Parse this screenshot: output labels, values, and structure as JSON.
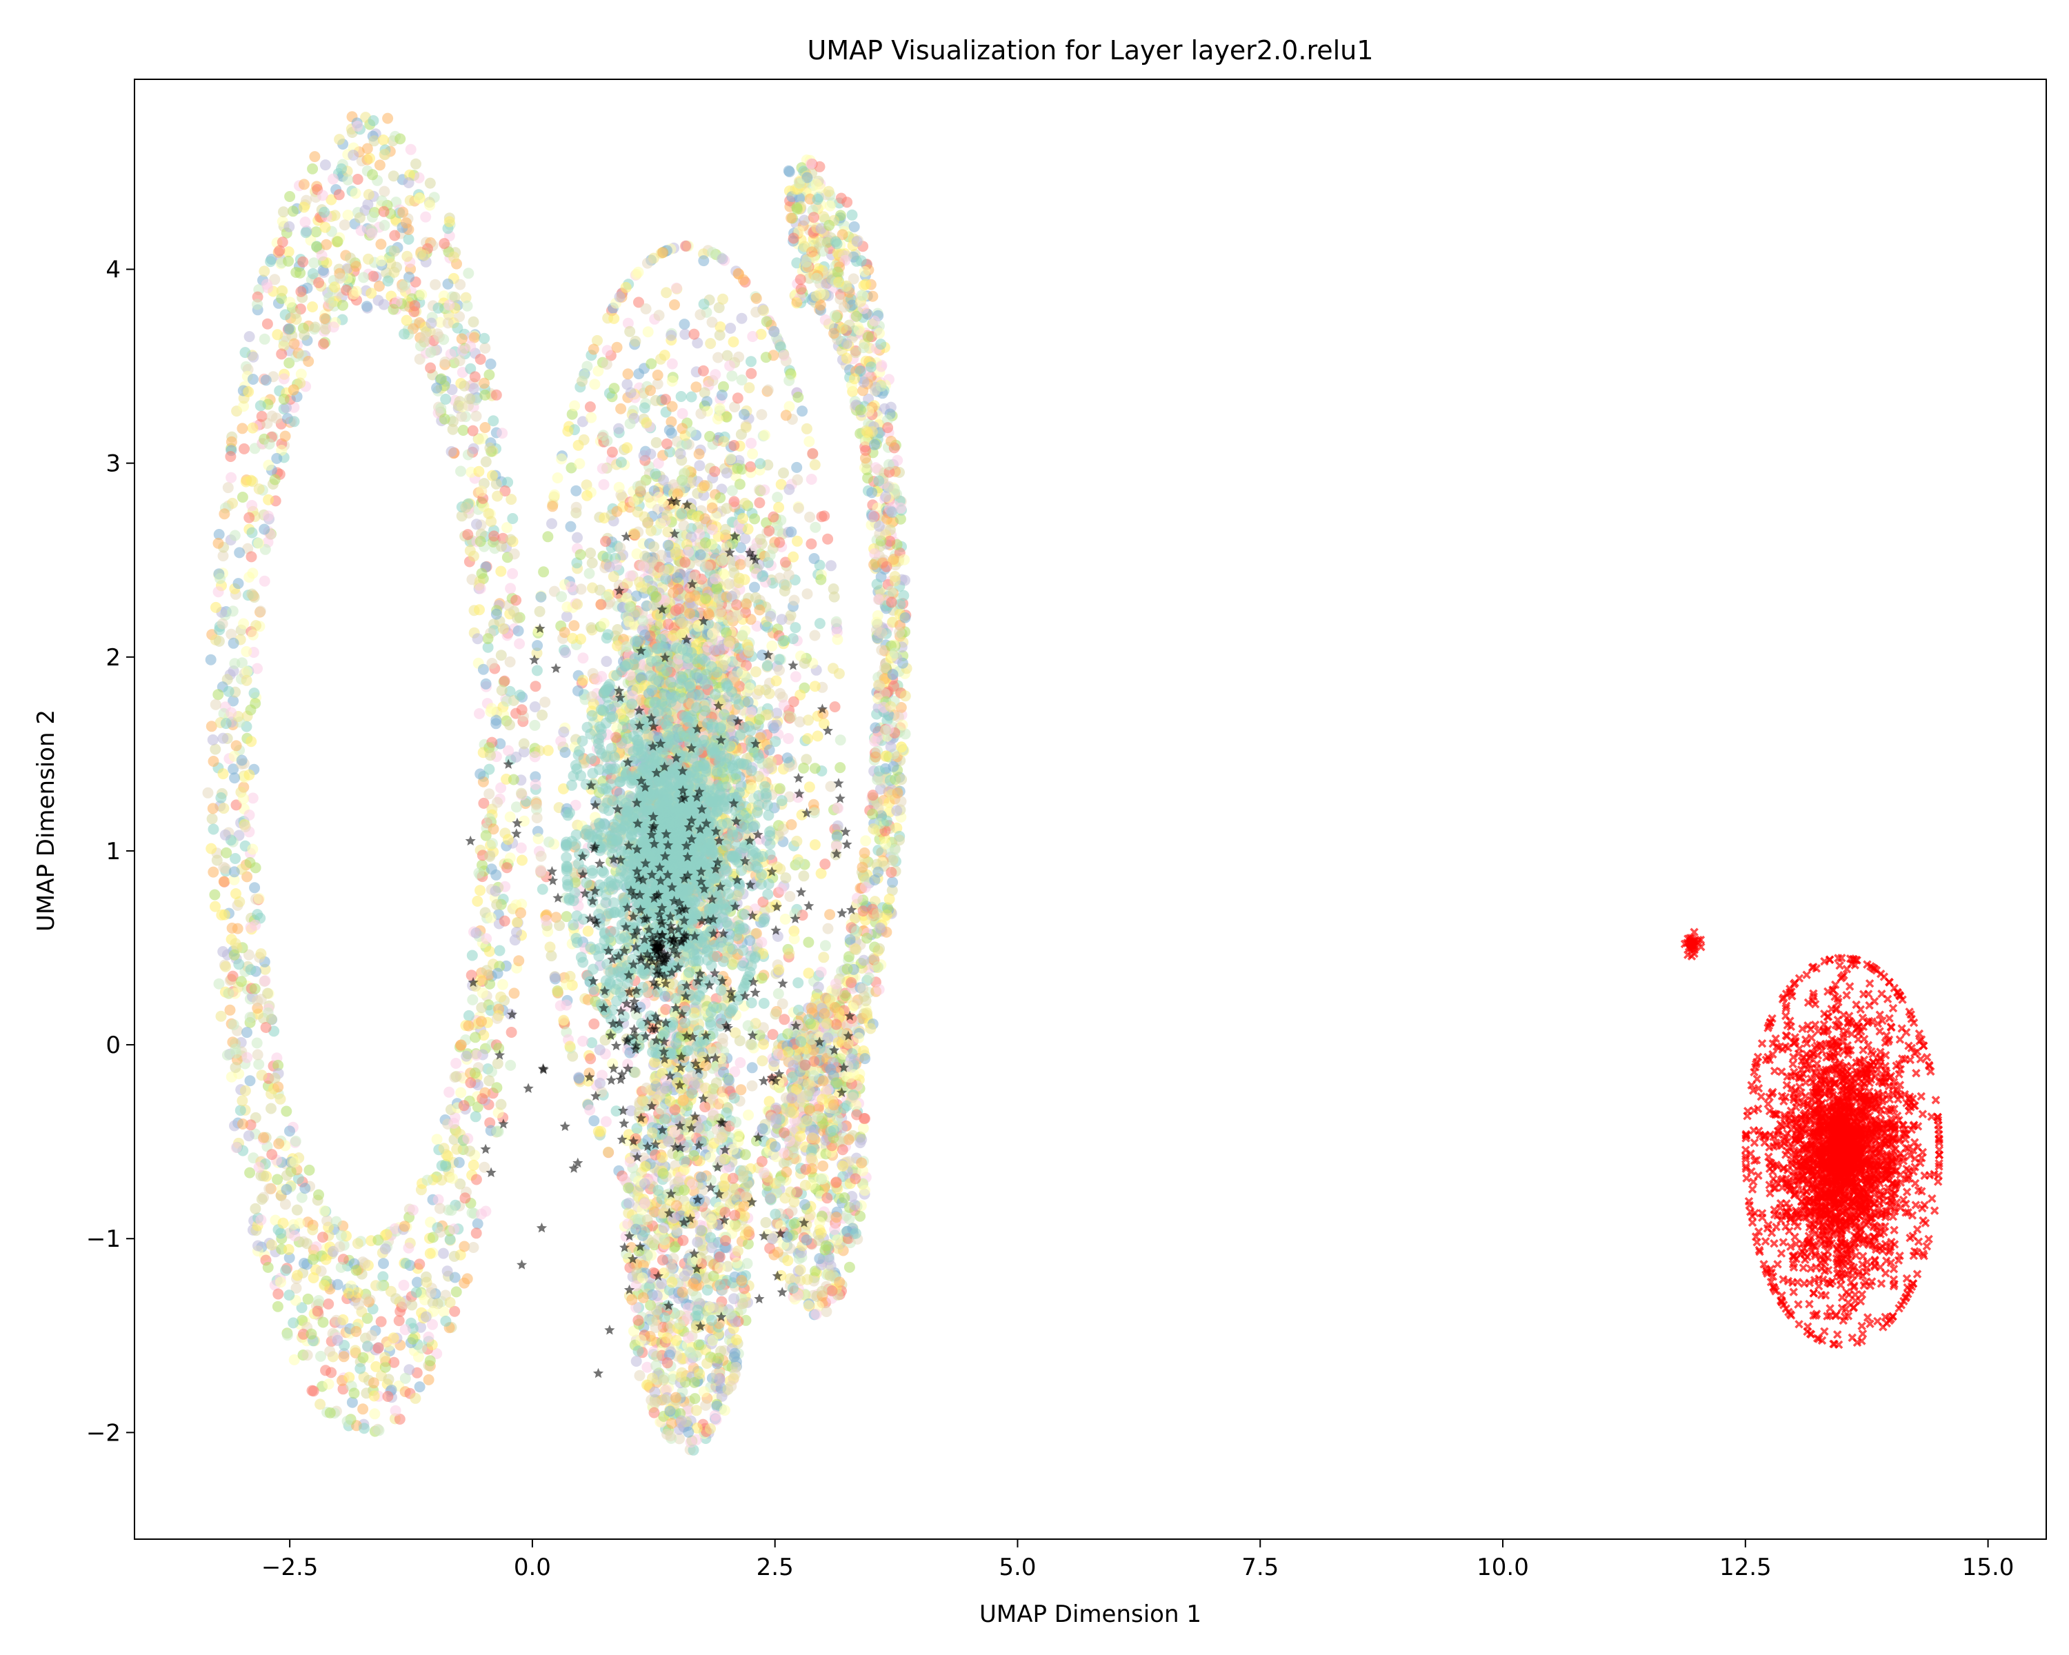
{
  "chart_data": {
    "type": "scatter",
    "title": "UMAP Visualization for Layer layer2.0.relu1",
    "xlabel": "UMAP Dimension 1",
    "ylabel": "UMAP Dimension 2",
    "xlim": [
      -4.1,
      15.6
    ],
    "ylim": [
      -2.55,
      4.98
    ],
    "xticks": [
      -2.5,
      0.0,
      2.5,
      5.0,
      7.5,
      10.0,
      12.5,
      15.0
    ],
    "xtick_labels": [
      "−2.5",
      "0.0",
      "2.5",
      "5.0",
      "7.5",
      "10.0",
      "12.5",
      "15.0"
    ],
    "yticks": [
      -2,
      -1,
      0,
      1,
      2,
      3,
      4
    ],
    "ytick_labels": [
      "−2",
      "−1",
      "0",
      "1",
      "2",
      "3",
      "4"
    ],
    "grid": false,
    "legend": false,
    "colors": {
      "palette": [
        "#8dd3c7",
        "#ffffb3",
        "#bebada",
        "#fb8072",
        "#80b1d3",
        "#fdb462",
        "#b3de69",
        "#fccde5",
        "#e5d8bd",
        "#ccebc5",
        "#ffed6f",
        "#d9d9a0",
        "#f0e68c"
      ],
      "cluster_core": "#8fd1c6",
      "star_marker": "#000000",
      "outlier_marker": "#ff0000"
    },
    "series": [
      {
        "marker": "circle",
        "color": "mixed-pastel",
        "regions": [
          {
            "shape": "ring",
            "cx": -1.7,
            "cy": 1.4,
            "rx": 1.4,
            "ry": 2.9,
            "thickness": 0.35,
            "density": 1700
          },
          {
            "shape": "blob",
            "cx": 1.6,
            "cy": 1.6,
            "rx": 1.5,
            "ry": 2.4,
            "density": 4200
          },
          {
            "shape": "arc",
            "cx": 2.8,
            "cy": 2.0,
            "rx": 0.9,
            "ry": 2.2,
            "thickness": 0.35,
            "density": 1100
          },
          {
            "shape": "lobe",
            "cx": 1.6,
            "cy": -1.0,
            "rx": 0.65,
            "ry": 1.1,
            "density": 900
          },
          {
            "shape": "lobe",
            "cx": 2.9,
            "cy": -0.6,
            "rx": 0.55,
            "ry": 0.8,
            "density": 500
          }
        ]
      },
      {
        "marker": "circle",
        "color": "#8fd1c6",
        "regions": [
          {
            "shape": "blob",
            "cx": 1.4,
            "cy": 1.0,
            "rx": 1.0,
            "ry": 1.0,
            "density": 1800
          }
        ]
      },
      {
        "marker": "star",
        "color": "#000000",
        "regions": [
          {
            "shape": "blob",
            "cx": 1.3,
            "cy": 0.5,
            "rx": 1.9,
            "ry": 2.2,
            "density": 380
          }
        ]
      },
      {
        "marker": "x",
        "color": "#ff0000",
        "regions": [
          {
            "shape": "blob",
            "cx": 13.5,
            "cy": -0.55,
            "rx": 0.95,
            "ry": 0.95,
            "density": 2600
          },
          {
            "shape": "blob",
            "cx": 11.95,
            "cy": 0.52,
            "rx": 0.09,
            "ry": 0.06,
            "density": 40
          }
        ]
      }
    ]
  }
}
